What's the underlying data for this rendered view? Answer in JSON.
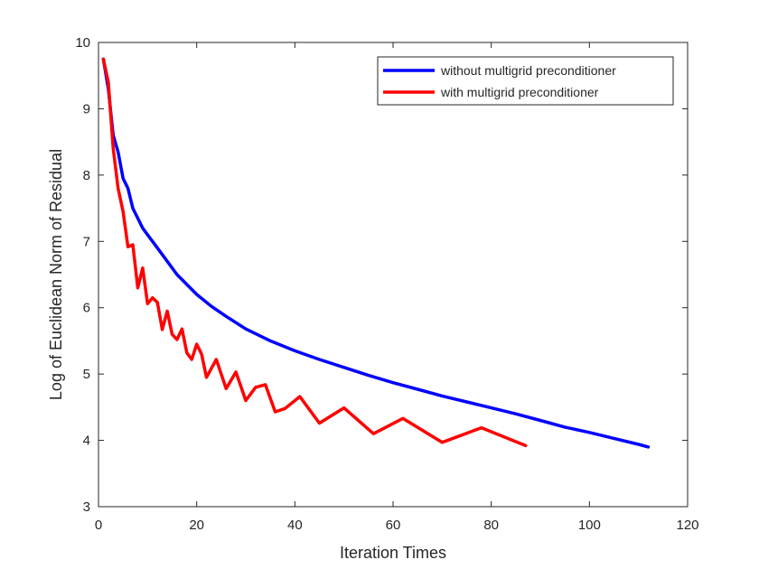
{
  "chart_data": {
    "type": "line",
    "xlabel": "Iteration Times",
    "ylabel": "Log of Euclidean Norm of Residual",
    "xlim": [
      0,
      120
    ],
    "ylim": [
      3,
      10
    ],
    "xticks": [
      "0",
      "20",
      "40",
      "60",
      "80",
      "100",
      "120"
    ],
    "yticks": [
      "3",
      "4",
      "5",
      "6",
      "7",
      "8",
      "9",
      "10"
    ],
    "grid": false,
    "legend_position": "top-right",
    "series": [
      {
        "name": "without multigrid preconditioner",
        "color": "#0000ff",
        "x": [
          1,
          2,
          3,
          4,
          5,
          6,
          7,
          8,
          9,
          10,
          12,
          14,
          16,
          18,
          20,
          23,
          26,
          30,
          35,
          40,
          45,
          50,
          55,
          60,
          65,
          70,
          75,
          80,
          85,
          90,
          95,
          100,
          105,
          110,
          112
        ],
        "y": [
          9.75,
          9.3,
          8.6,
          8.35,
          7.95,
          7.8,
          7.5,
          7.35,
          7.2,
          7.1,
          6.9,
          6.7,
          6.5,
          6.35,
          6.2,
          6.02,
          5.87,
          5.68,
          5.5,
          5.35,
          5.22,
          5.1,
          4.98,
          4.87,
          4.77,
          4.67,
          4.58,
          4.49,
          4.4,
          4.3,
          4.2,
          4.12,
          4.03,
          3.94,
          3.9
        ]
      },
      {
        "name": "with multigrid preconditioner",
        "color": "#ff0000",
        "x": [
          1,
          2,
          3,
          4,
          5,
          6,
          7,
          8,
          9,
          10,
          11,
          12,
          13,
          14,
          15,
          16,
          17,
          18,
          19,
          20,
          21,
          22,
          24,
          26,
          28,
          30,
          32,
          34,
          36,
          38,
          41,
          45,
          50,
          56,
          62,
          70,
          78,
          87
        ],
        "y": [
          9.75,
          9.4,
          8.4,
          7.8,
          7.45,
          6.92,
          6.95,
          6.3,
          6.6,
          6.06,
          6.15,
          6.08,
          5.67,
          5.95,
          5.6,
          5.52,
          5.68,
          5.32,
          5.22,
          5.45,
          5.3,
          4.95,
          5.22,
          4.78,
          5.03,
          4.6,
          4.8,
          4.84,
          4.43,
          4.48,
          4.66,
          4.26,
          4.49,
          4.1,
          4.33,
          3.97,
          4.19,
          3.92
        ]
      }
    ]
  }
}
